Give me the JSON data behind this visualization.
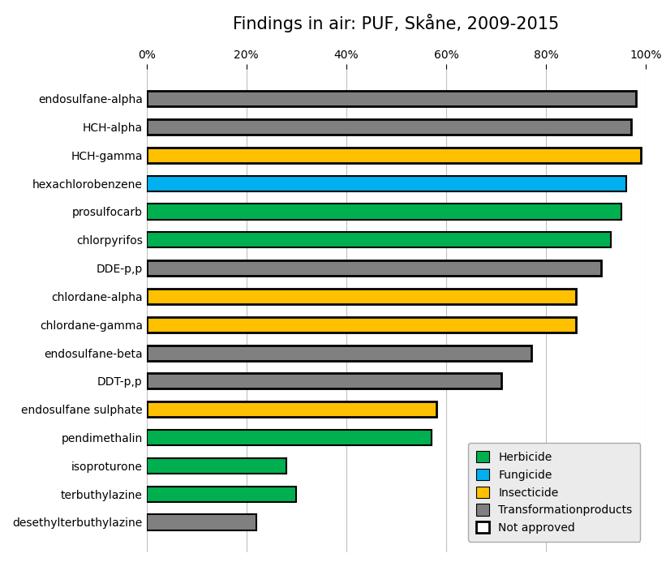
{
  "title": "Findings in air: PUF, Skåne, 2009-2015",
  "categories": [
    "endosulfane-alpha",
    "HCH-alpha",
    "HCH-gamma",
    "hexachlorobenzene",
    "prosulfocarb",
    "chlorpyrifos",
    "DDE-p,p",
    "chlordane-alpha",
    "chlordane-gamma",
    "endosulfane-beta",
    "DDT-p,p",
    "endosulfane sulphate",
    "pendimethalin",
    "isoproturone",
    "terbuthylazine",
    "desethylterbuthylazine"
  ],
  "values": [
    98,
    97,
    99,
    96,
    95,
    93,
    91,
    86,
    86,
    77,
    71,
    58,
    57,
    28,
    30,
    22
  ],
  "colors": [
    "#808080",
    "#808080",
    "#FFC000",
    "#00B0F0",
    "#00B050",
    "#00B050",
    "#808080",
    "#FFC000",
    "#FFC000",
    "#808080",
    "#808080",
    "#FFC000",
    "#00B050",
    "#00B050",
    "#00B050",
    "#808080"
  ],
  "not_approved": [
    true,
    true,
    true,
    false,
    false,
    false,
    true,
    true,
    true,
    true,
    true,
    true,
    false,
    false,
    false,
    false
  ],
  "legend_items": [
    {
      "label": "Herbicide",
      "color": "#00B050"
    },
    {
      "label": "Fungicide",
      "color": "#00B0F0"
    },
    {
      "label": "Insecticide",
      "color": "#FFC000"
    },
    {
      "label": "Transformationproducts",
      "color": "#808080"
    },
    {
      "label": "Not approved",
      "color": "white"
    }
  ],
  "xlim": [
    0,
    100
  ],
  "xticks": [
    0,
    20,
    40,
    60,
    80,
    100
  ],
  "xticklabels": [
    "0%",
    "20%",
    "40%",
    "60%",
    "80%",
    "100%"
  ],
  "background_color": "#ffffff",
  "bar_edgecolor": "#000000",
  "grid_color": "#c0c0c0",
  "title_fontsize": 15,
  "tick_fontsize": 10,
  "bar_height": 0.55
}
